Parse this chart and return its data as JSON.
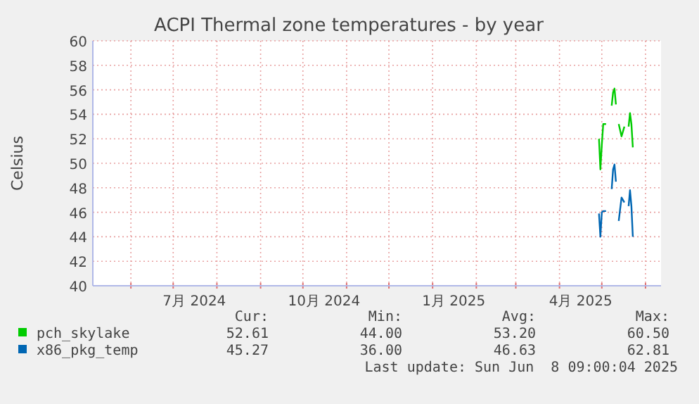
{
  "chart_data": {
    "type": "line",
    "title": "ACPI Thermal zone temperatures - by year",
    "ylabel": "Celsius",
    "xlim": [
      "2024-05-05",
      "2025-06-12"
    ],
    "xticks": [
      {
        "value": "2024-06-01",
        "label": null
      },
      {
        "value": "2024-07-01",
        "label": null
      },
      {
        "value": "2024-07-16",
        "label": "7月 2024"
      },
      {
        "value": "2024-08-01",
        "label": null
      },
      {
        "value": "2024-09-01",
        "label": null
      },
      {
        "value": "2024-10-01",
        "label": null
      },
      {
        "value": "2024-10-16",
        "label": "10月 2024"
      },
      {
        "value": "2024-11-01",
        "label": null
      },
      {
        "value": "2024-12-01",
        "label": null
      },
      {
        "value": "2025-01-01",
        "label": null
      },
      {
        "value": "2025-01-16",
        "label": "1月 2025"
      },
      {
        "value": "2025-02-01",
        "label": null
      },
      {
        "value": "2025-03-01",
        "label": null
      },
      {
        "value": "2025-04-01",
        "label": null
      },
      {
        "value": "2025-04-16",
        "label": "4月 2025"
      },
      {
        "value": "2025-05-01",
        "label": null
      },
      {
        "value": "2025-06-01",
        "label": null
      }
    ],
    "ylim": [
      40,
      60
    ],
    "yticks": [
      40,
      42,
      44,
      46,
      48,
      50,
      52,
      54,
      56,
      58,
      60
    ],
    "grid": true,
    "legend": "bottom",
    "marker": "none",
    "line_style": "solid",
    "x": [
      "2025-04-29",
      "2025-04-30",
      "2025-05-01",
      "2025-05-02",
      "2025-05-04",
      "2025-05-06",
      "2025-05-08",
      "2025-05-09",
      "2025-05-10",
      "2025-05-11",
      "2025-05-12",
      "2025-05-13",
      "2025-05-15",
      "2025-05-17",
      "2025-05-18",
      "2025-05-20",
      "2025-05-21",
      "2025-05-22",
      "2025-05-23"
    ],
    "series": [
      {
        "name": "pch_skylake",
        "color": "#00cc00",
        "values": [
          52.0,
          49.5,
          51.5,
          53.2,
          53.2,
          null,
          54.7,
          55.8,
          56.1,
          54.8,
          null,
          53.2,
          52.2,
          53.0,
          null,
          53.0,
          54.1,
          53.2,
          51.3
        ]
      },
      {
        "name": "x86_pkg_temp",
        "color": "#0066b3",
        "values": [
          45.9,
          44.0,
          46.0,
          46.1,
          46.1,
          null,
          47.9,
          49.5,
          49.9,
          48.5,
          null,
          45.3,
          47.2,
          46.8,
          null,
          46.5,
          47.8,
          46.5,
          44.0
        ]
      }
    ],
    "annotations": [
      "Cur:",
      "Min:",
      "Avg:",
      "Max:",
      "52.61",
      "44.00",
      "53.20",
      "60.50",
      "45.27",
      "36.00",
      "46.63",
      "62.81",
      "Last update: Sun Jun  8 09:00:04 2025"
    ]
  }
}
